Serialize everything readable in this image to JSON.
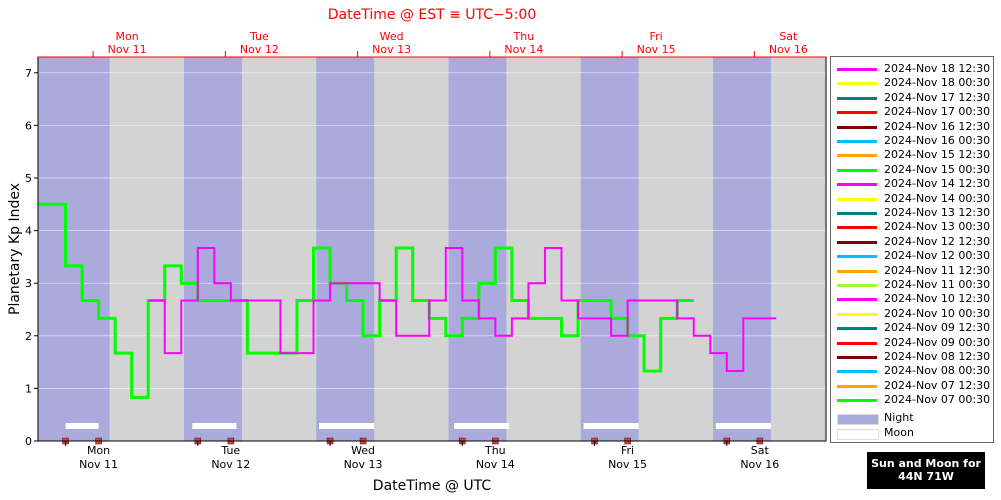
{
  "chart_data": {
    "type": "line",
    "title_top": "DateTime @ EST ≡ UTC−5:00",
    "xlabel": "DateTime @ UTC",
    "ylabel": "Planetary Kp Index",
    "ylim": [
      0,
      7.3
    ],
    "yticks": [
      "0",
      "1",
      "2",
      "3",
      "4",
      "5",
      "6",
      "7"
    ],
    "xlim_utc": [
      "2024-11-10T19:00",
      "2024-11-16T18:00"
    ],
    "top_ticks": [
      {
        "day": "Mon",
        "date": "Nov 11"
      },
      {
        "day": "Tue",
        "date": "Nov 12"
      },
      {
        "day": "Wed",
        "date": "Nov 13"
      },
      {
        "day": "Thu",
        "date": "Nov 14"
      },
      {
        "day": "Fri",
        "date": "Nov 15"
      },
      {
        "day": "Sat",
        "date": "Nov 16"
      }
    ],
    "bottom_ticks": [
      {
        "day": "Mon",
        "date": "Nov 11"
      },
      {
        "day": "Tue",
        "date": "Nov 12"
      },
      {
        "day": "Wed",
        "date": "Nov 13"
      },
      {
        "day": "Thu",
        "date": "Nov 14"
      },
      {
        "day": "Fri",
        "date": "Nov 15"
      },
      {
        "day": "Sat",
        "date": "Nov 16"
      }
    ],
    "night_intervals_utc": [
      [
        "2024-11-10T19:00",
        "2024-11-11T08:00"
      ],
      [
        "2024-11-11T21:30",
        "2024-11-12T08:00"
      ],
      [
        "2024-11-12T21:30",
        "2024-11-13T08:00"
      ],
      [
        "2024-11-13T21:30",
        "2024-11-14T08:00"
      ],
      [
        "2024-11-14T21:30",
        "2024-11-15T08:00"
      ],
      [
        "2024-11-15T21:30",
        "2024-11-16T08:00"
      ],
      [
        "2024-11-16T21:30",
        "2024-11-16T23:00"
      ]
    ],
    "moon_intervals_utc": [
      [
        "2024-11-11T00:00",
        "2024-11-11T06:00"
      ],
      [
        "2024-11-11T23:00",
        "2024-11-12T07:00"
      ],
      [
        "2024-11-12T22:00",
        "2024-11-13T08:00"
      ],
      [
        "2024-11-13T22:30",
        "2024-11-14T08:30"
      ],
      [
        "2024-11-14T22:00",
        "2024-11-15T08:00"
      ],
      [
        "2024-11-15T22:00",
        "2024-11-16T08:00"
      ]
    ],
    "series": [
      {
        "name": "2024-Nov 18 12:30",
        "color": "#ff00ff",
        "points": [
          [
            "2024-11-11T15:00",
            2.67
          ],
          [
            "2024-11-11T18:00",
            1.67
          ],
          [
            "2024-11-11T21:00",
            2.67
          ],
          [
            "2024-11-12T00:00",
            3.67
          ],
          [
            "2024-11-12T03:00",
            3.0
          ],
          [
            "2024-11-12T06:00",
            2.67
          ],
          [
            "2024-11-12T09:00",
            2.67
          ],
          [
            "2024-11-12T12:00",
            2.67
          ],
          [
            "2024-11-12T15:00",
            1.67
          ],
          [
            "2024-11-12T18:00",
            1.67
          ],
          [
            "2024-11-12T21:00",
            2.67
          ],
          [
            "2024-11-13T00:00",
            3.0
          ],
          [
            "2024-11-13T03:00",
            3.0
          ],
          [
            "2024-11-13T06:00",
            3.0
          ],
          [
            "2024-11-13T09:00",
            2.67
          ],
          [
            "2024-11-13T12:00",
            2.0
          ],
          [
            "2024-11-13T15:00",
            2.0
          ],
          [
            "2024-11-13T18:00",
            2.67
          ],
          [
            "2024-11-13T21:00",
            3.67
          ],
          [
            "2024-11-14T00:00",
            2.67
          ],
          [
            "2024-11-14T03:00",
            2.33
          ],
          [
            "2024-11-14T06:00",
            2.0
          ],
          [
            "2024-11-14T09:00",
            2.33
          ],
          [
            "2024-11-14T12:00",
            3.0
          ],
          [
            "2024-11-14T15:00",
            3.67
          ],
          [
            "2024-11-14T18:00",
            2.67
          ],
          [
            "2024-11-14T21:00",
            2.33
          ],
          [
            "2024-11-15T00:00",
            2.33
          ],
          [
            "2024-11-15T03:00",
            2.0
          ],
          [
            "2024-11-15T06:00",
            2.67
          ],
          [
            "2024-11-15T09:00",
            2.67
          ],
          [
            "2024-11-15T12:00",
            2.67
          ],
          [
            "2024-11-15T15:00",
            2.33
          ],
          [
            "2024-11-15T18:00",
            2.0
          ],
          [
            "2024-11-15T21:00",
            1.67
          ],
          [
            "2024-11-16T00:00",
            1.33
          ],
          [
            "2024-11-16T03:00",
            2.33
          ],
          [
            "2024-11-16T06:00",
            2.33
          ]
        ]
      },
      {
        "name": "2024-Nov 18 00:30",
        "color": "#ffff00",
        "points": []
      },
      {
        "name": "2024-Nov 17 12:30",
        "color": "#008080",
        "points": []
      },
      {
        "name": "2024-Nov 17 00:30",
        "color": "#ff0000",
        "points": []
      },
      {
        "name": "2024-Nov 16 12:30",
        "color": "#800000",
        "points": []
      },
      {
        "name": "2024-Nov 16 00:30",
        "color": "#00bfff",
        "points": []
      },
      {
        "name": "2024-Nov 15 12:30",
        "color": "#ffa500",
        "points": []
      },
      {
        "name": "2024-Nov 15 00:30",
        "color": "#00ff00",
        "points": []
      },
      {
        "name": "2024-Nov 14 12:30",
        "color": "#ff00ff",
        "points": []
      },
      {
        "name": "2024-Nov 14 00:30",
        "color": "#ffff00",
        "points": []
      },
      {
        "name": "2024-Nov 13 12:30",
        "color": "#008080",
        "points": []
      },
      {
        "name": "2024-Nov 13 00:30",
        "color": "#ff0000",
        "points": []
      },
      {
        "name": "2024-Nov 12 12:30",
        "color": "#800000",
        "points": []
      },
      {
        "name": "2024-Nov 12 00:30",
        "color": "#00bfff",
        "points": []
      },
      {
        "name": "2024-Nov 11 12:30",
        "color": "#ffa500",
        "points": []
      },
      {
        "name": "2024-Nov 11 00:30",
        "color": "#99ff33",
        "points": []
      },
      {
        "name": "2024-Nov 10 12:30",
        "color": "#ff00ff",
        "points": []
      },
      {
        "name": "2024-Nov 10 00:30",
        "color": "#ffff00",
        "points": []
      },
      {
        "name": "2024-Nov 09 12:30",
        "color": "#008080",
        "points": []
      },
      {
        "name": "2024-Nov 09 00:30",
        "color": "#ff0000",
        "points": []
      },
      {
        "name": "2024-Nov 08 12:30",
        "color": "#800000",
        "points": []
      },
      {
        "name": "2024-Nov 08 00:30",
        "color": "#00bfff",
        "points": []
      },
      {
        "name": "2024-Nov 07 12:30",
        "color": "#ffa500",
        "points": []
      },
      {
        "name": "2024-Nov 07 00:30",
        "color": "#00ff00",
        "points": []
      }
    ],
    "step_lines": [
      {
        "color": "#00ff00",
        "points": [
          [
            "2024-11-10T19:00",
            4.5
          ],
          [
            "2024-11-11T00:00",
            3.33
          ],
          [
            "2024-11-11T03:00",
            2.67
          ],
          [
            "2024-11-11T06:00",
            2.33
          ],
          [
            "2024-11-11T09:00",
            1.67
          ],
          [
            "2024-11-11T12:00",
            0.83
          ],
          [
            "2024-11-11T15:00",
            2.67
          ],
          [
            "2024-11-11T18:00",
            3.33
          ],
          [
            "2024-11-11T21:00",
            3.0
          ],
          [
            "2024-11-12T00:00",
            2.67
          ],
          [
            "2024-11-12T03:00",
            2.67
          ],
          [
            "2024-11-12T06:00",
            2.67
          ],
          [
            "2024-11-12T09:00",
            1.67
          ],
          [
            "2024-11-12T12:00",
            1.67
          ],
          [
            "2024-11-12T15:00",
            1.67
          ],
          [
            "2024-11-12T18:00",
            2.67
          ],
          [
            "2024-11-12T21:00",
            3.67
          ],
          [
            "2024-11-13T00:00",
            3.0
          ],
          [
            "2024-11-13T03:00",
            2.67
          ],
          [
            "2024-11-13T06:00",
            2.0
          ],
          [
            "2024-11-13T09:00",
            2.67
          ],
          [
            "2024-11-13T12:00",
            3.67
          ],
          [
            "2024-11-13T15:00",
            2.67
          ],
          [
            "2024-11-13T18:00",
            2.33
          ],
          [
            "2024-11-13T21:00",
            2.0
          ],
          [
            "2024-11-14T00:00",
            2.33
          ],
          [
            "2024-11-14T03:00",
            3.0
          ],
          [
            "2024-11-14T06:00",
            3.67
          ],
          [
            "2024-11-14T09:00",
            2.67
          ],
          [
            "2024-11-14T12:00",
            2.33
          ],
          [
            "2024-11-14T15:00",
            2.33
          ],
          [
            "2024-11-14T18:00",
            2.0
          ],
          [
            "2024-11-14T21:00",
            2.67
          ],
          [
            "2024-11-15T00:00",
            2.67
          ],
          [
            "2024-11-15T03:00",
            2.33
          ],
          [
            "2024-11-15T06:00",
            2.0
          ],
          [
            "2024-11-15T09:00",
            1.33
          ],
          [
            "2024-11-15T12:00",
            2.33
          ],
          [
            "2024-11-15T15:00",
            2.67
          ]
        ]
      }
    ],
    "markers": [
      "2024-11-11T00:00",
      "2024-11-11T06:00",
      "2024-11-12T00:00",
      "2024-11-12T06:00",
      "2024-11-13T00:00",
      "2024-11-13T06:00",
      "2024-11-14T00:00",
      "2024-11-14T06:00",
      "2024-11-15T00:00",
      "2024-11-15T06:00",
      "2024-11-16T00:00",
      "2024-11-16T06:00"
    ]
  },
  "legend": {
    "night_label": "Night",
    "moon_label": "Moon",
    "night_color": "#aaaadd",
    "moon_color": "#ffffff"
  },
  "sunmoon": {
    "line1": "Sun and Moon for",
    "line2": "44N 71W"
  },
  "colors": {
    "plot_bg": "#d3d3d3",
    "night": "#aaaadd",
    "axis_red": "#ff0000"
  }
}
